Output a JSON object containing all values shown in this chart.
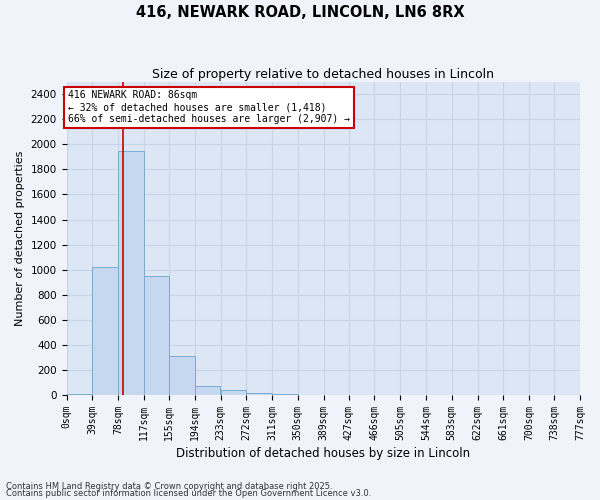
{
  "title1": "416, NEWARK ROAD, LINCOLN, LN6 8RX",
  "title2": "Size of property relative to detached houses in Lincoln",
  "xlabel": "Distribution of detached houses by size in Lincoln",
  "ylabel": "Number of detached properties",
  "bar_values": [
    5,
    1020,
    1950,
    950,
    310,
    75,
    40,
    15,
    5,
    2,
    0,
    0,
    0,
    0,
    0,
    0,
    0,
    0,
    0,
    0
  ],
  "bin_edges": [
    0,
    39,
    78,
    117,
    155,
    194,
    233,
    272,
    311,
    350,
    389,
    427,
    466,
    505,
    544,
    583,
    622,
    661,
    700,
    738,
    777
  ],
  "bin_labels": [
    "0sqm",
    "39sqm",
    "78sqm",
    "117sqm",
    "155sqm",
    "194sqm",
    "233sqm",
    "272sqm",
    "311sqm",
    "350sqm",
    "389sqm",
    "427sqm",
    "466sqm",
    "505sqm",
    "544sqm",
    "583sqm",
    "622sqm",
    "661sqm",
    "700sqm",
    "738sqm",
    "777sqm"
  ],
  "bar_color": "#c5d8f0",
  "bar_edge_color": "#7aabce",
  "ylim": [
    0,
    2500
  ],
  "yticks": [
    0,
    200,
    400,
    600,
    800,
    1000,
    1200,
    1400,
    1600,
    1800,
    2000,
    2200,
    2400
  ],
  "grid_color": "#c8d4e8",
  "bg_color": "#dce6f5",
  "fig_bg_color": "#f0f4fa",
  "property_sqm": 86,
  "red_line_color": "#cc0000",
  "annotation_text": "416 NEWARK ROAD: 86sqm\n← 32% of detached houses are smaller (1,418)\n66% of semi-detached houses are larger (2,907) →",
  "annotation_box_color": "#ffffff",
  "annotation_box_edge": "#cc0000",
  "footer1": "Contains HM Land Registry data © Crown copyright and database right 2025.",
  "footer2": "Contains public sector information licensed under the Open Government Licence v3.0."
}
